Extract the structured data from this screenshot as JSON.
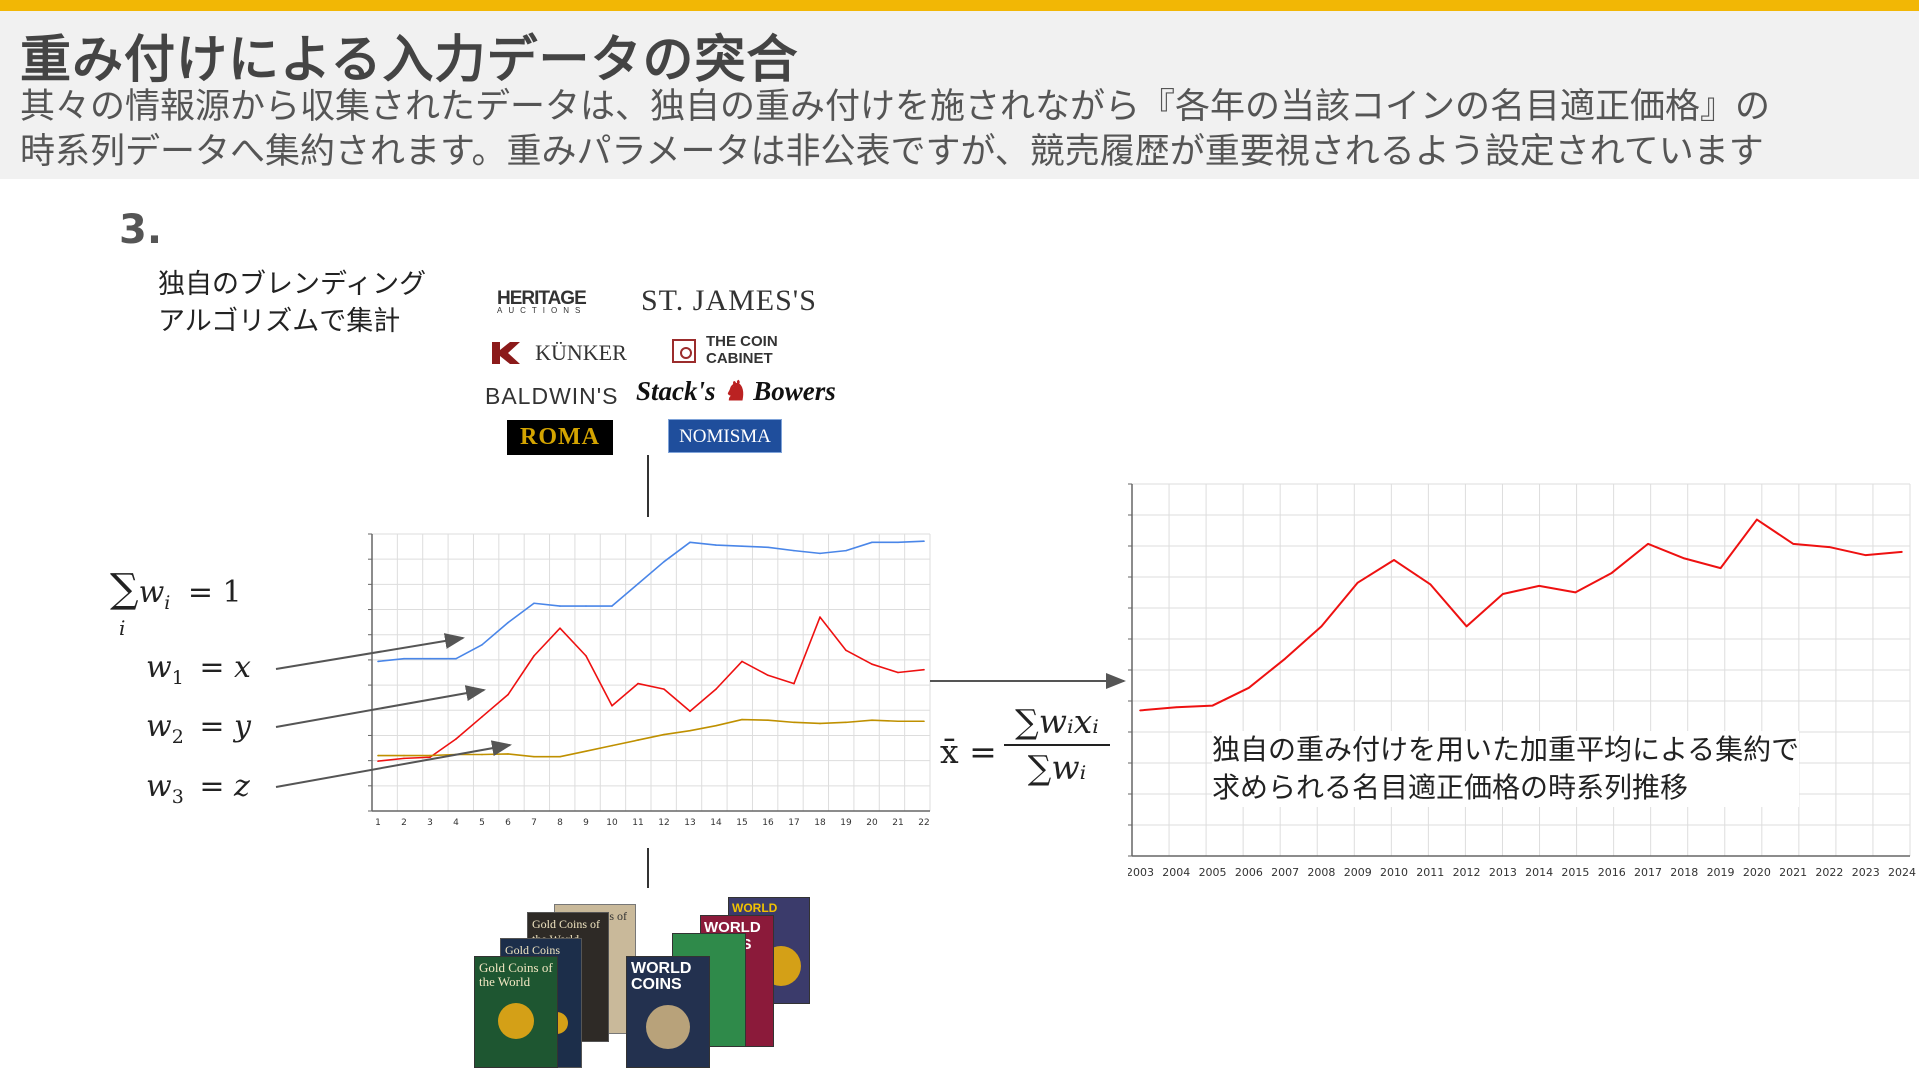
{
  "header": {
    "title": "重み付けによる入力データの突合",
    "subtitle_line1": "其々の情報源から収集されたデータは、独自の重み付けを施されながら『各年の当該コインの名目適正価格』の",
    "subtitle_line2": "時系列データへ集約されます。重みパラメータは非公表ですが、競売履歴が重要視されるよう設定されています"
  },
  "step": {
    "number": "3."
  },
  "blend_label": {
    "line1": "独自のブレンディング",
    "line2": "アルゴリズムで集計"
  },
  "logos": {
    "heritage": "HERITAGE",
    "heritage_sub": "AUCTIONS",
    "st_james": "ST. JAMES'S",
    "kunker": "KÜNKER",
    "coin_cabinet_1": "THE COIN",
    "coin_cabinet_2": "CABINET",
    "baldwins": "BALDWIN'S",
    "stacks": "Stack's",
    "bowers": "Bowers",
    "roma": "ROMA",
    "nomisma": "NOMISMA"
  },
  "books": {
    "b1": "Gold Coins of the World",
    "b2": "Gold Coins of the World",
    "b3": "Gold Coins of the World",
    "b4": "WORLD COINS",
    "b5": "WORLD COINS",
    "b6": "WORLD COINS"
  },
  "formulas": {
    "sum": "∑",
    "sum_index": "i",
    "w": "w",
    "i": "i",
    "eq_one": "=  1",
    "w1": "w",
    "w1_sub": "1",
    "eq_x": "=  x",
    "w2": "w",
    "w2_sub": "2",
    "eq_y": "=  y",
    "w3": "w",
    "w3_sub": "3",
    "eq_z": "=  z",
    "mean": "x̄ =",
    "num": "∑wᵢxᵢ",
    "den": "∑wᵢ"
  },
  "aggregation_text": {
    "line1": "独自の重み付けを用いた加重平均による集約で",
    "line2": "求められる名目適正価格の時系列推移"
  },
  "chart_data": [
    {
      "type": "line",
      "x": [
        1,
        2,
        3,
        4,
        5,
        6,
        7,
        8,
        9,
        10,
        11,
        12,
        13,
        14,
        15,
        16,
        17,
        18,
        19,
        20,
        21,
        22
      ],
      "series": [
        {
          "color": "#4a86e8",
          "values": [
            87,
            87.5,
            87.5,
            87.5,
            90,
            94,
            97.5,
            97,
            97,
            97,
            101,
            105,
            108.5,
            108,
            107.8,
            107.6,
            107,
            106.5,
            107,
            108.5,
            108.5,
            108.7
          ]
        },
        {
          "color": "#ee1111",
          "values": [
            69,
            69.5,
            69.7,
            73,
            77,
            81,
            88,
            93,
            88,
            79,
            83,
            82,
            78,
            82,
            87,
            84.5,
            83,
            95,
            89,
            86.5,
            85,
            85.5
          ]
        },
        {
          "color": "#bf9000",
          "values": [
            70,
            70,
            70,
            70.2,
            70.2,
            70.3,
            69.8,
            69.8,
            70.8,
            71.8,
            72.8,
            73.8,
            74.5,
            75.4,
            76.5,
            76.4,
            76,
            75.8,
            76,
            76.4,
            76.2,
            76.2
          ]
        }
      ],
      "ylim": [
        60,
        110
      ],
      "grid": true
    },
    {
      "type": "line",
      "categories": [
        "2003",
        "2004",
        "2005",
        "2006",
        "2007",
        "2008",
        "2009",
        "2010",
        "2011",
        "2012",
        "2013",
        "2014",
        "2015",
        "2016",
        "2017",
        "2018",
        "2019",
        "2020",
        "2021",
        "2022",
        "2023",
        "2024"
      ],
      "series": [
        {
          "color": "#ee1111",
          "values": [
            45,
            46,
            46.5,
            52,
            61,
            71,
            84.5,
            91.5,
            84,
            71,
            81,
            83.5,
            81.5,
            87.5,
            96.5,
            92,
            89,
            104,
            96.5,
            95.5,
            93,
            94
          ]
        }
      ],
      "ylim": [
        0,
        115
      ],
      "grid": true
    }
  ]
}
